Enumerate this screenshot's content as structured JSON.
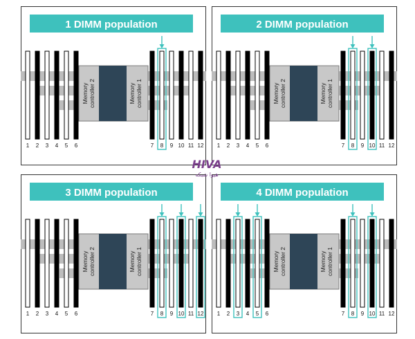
{
  "accent_color": "#3ec1bd",
  "panels": [
    {
      "title": "1 DIMM population",
      "populated_slots": [
        8
      ]
    },
    {
      "title": "2 DIMM population",
      "populated_slots": [
        8,
        10
      ]
    },
    {
      "title": "3 DIMM population",
      "populated_slots": [
        8,
        10,
        12
      ]
    },
    {
      "title": "4 DIMM population",
      "populated_slots": [
        3,
        5,
        8,
        10
      ]
    }
  ],
  "controllers": {
    "left": "Memory controller 2",
    "right": "Memory controller 1"
  },
  "slot_labels": [
    "1",
    "2",
    "3",
    "4",
    "5",
    "6",
    "7",
    "8",
    "9",
    "10",
    "11",
    "12"
  ],
  "watermark": {
    "logo": "HIVA",
    "subtitle": "هیوا شبکه"
  }
}
